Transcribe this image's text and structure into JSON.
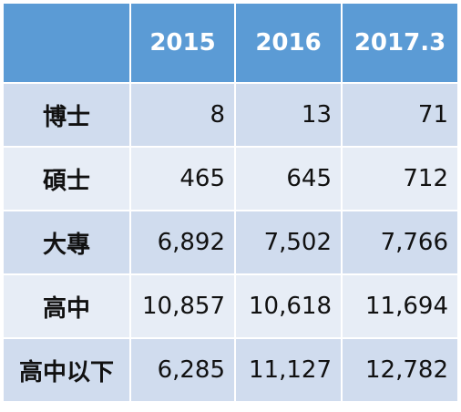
{
  "table": {
    "columns": [
      "2015",
      "2016",
      "2017.3"
    ],
    "rows": [
      [
        "博士",
        "8",
        "13",
        "71"
      ],
      [
        "碩士",
        "465",
        "645",
        "712"
      ],
      [
        "大專",
        "6,892",
        "7,502",
        "7,766"
      ],
      [
        "高中",
        "10,857",
        "10,618",
        "11,694"
      ],
      [
        "高中以下",
        "6,285",
        "11,127",
        "12,782"
      ]
    ]
  }
}
